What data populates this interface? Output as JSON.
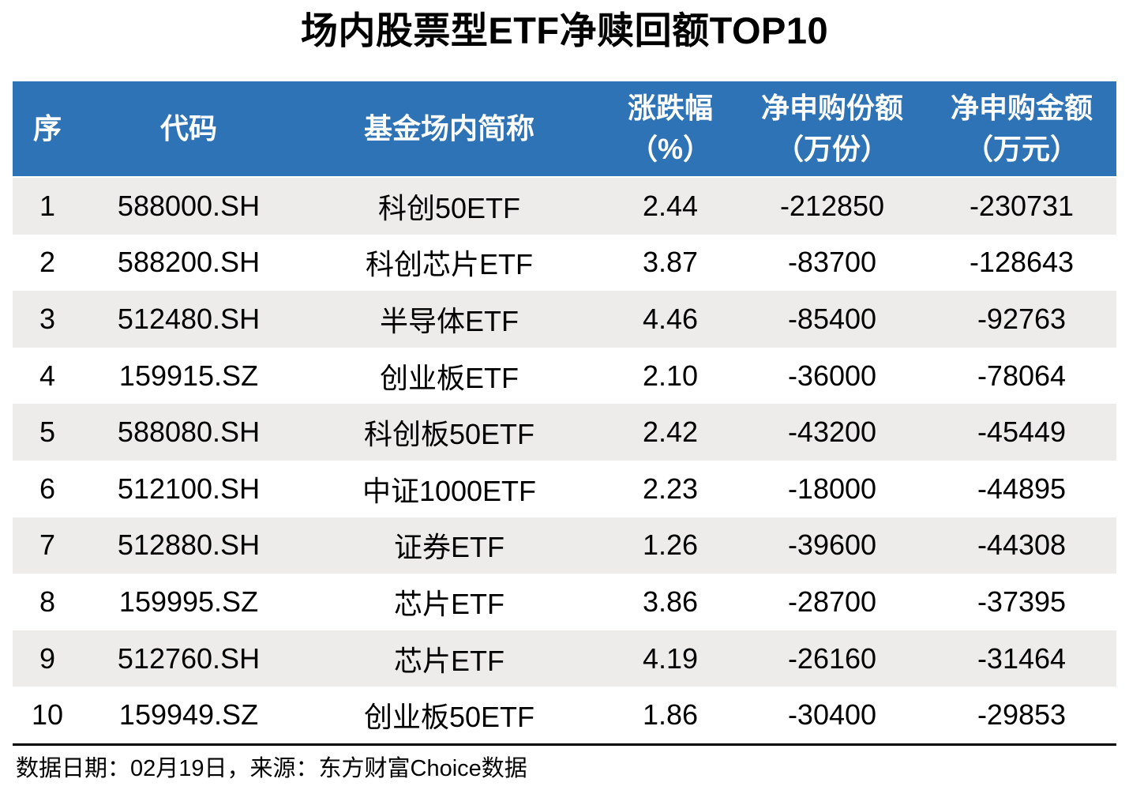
{
  "title": "场内股票型ETF净赎回额TOP10",
  "colors": {
    "header_bg": "#2E73B5",
    "stripe_bg": "#EDECEA",
    "header_fg": "#FFFFFF"
  },
  "footer": {
    "text": "数据日期：02月19日，来源：东方财富Choice数据"
  },
  "chart_data": {
    "type": "table",
    "title": "场内股票型ETF净赎回额TOP10",
    "columns": [
      {
        "label": "序",
        "sub": ""
      },
      {
        "label": "代码",
        "sub": ""
      },
      {
        "label": "基金场内简称",
        "sub": ""
      },
      {
        "label": "涨跌幅",
        "sub": "（%）"
      },
      {
        "label": "净申购份额",
        "sub": "（万份）"
      },
      {
        "label": "净申购金额",
        "sub": "（万元）"
      }
    ],
    "rows": [
      {
        "rank": "1",
        "code": "588000.SH",
        "name": "科创50ETF",
        "change": "2.44",
        "net_shares": "-212850",
        "net_amount": "-230731"
      },
      {
        "rank": "2",
        "code": "588200.SH",
        "name": "科创芯片ETF",
        "change": "3.87",
        "net_shares": "-83700",
        "net_amount": "-128643"
      },
      {
        "rank": "3",
        "code": "512480.SH",
        "name": "半导体ETF",
        "change": "4.46",
        "net_shares": "-85400",
        "net_amount": "-92763"
      },
      {
        "rank": "4",
        "code": "159915.SZ",
        "name": "创业板ETF",
        "change": "2.10",
        "net_shares": "-36000",
        "net_amount": "-78064"
      },
      {
        "rank": "5",
        "code": "588080.SH",
        "name": "科创板50ETF",
        "change": "2.42",
        "net_shares": "-43200",
        "net_amount": "-45449"
      },
      {
        "rank": "6",
        "code": "512100.SH",
        "name": "中证1000ETF",
        "change": "2.23",
        "net_shares": "-18000",
        "net_amount": "-44895"
      },
      {
        "rank": "7",
        "code": "512880.SH",
        "name": "证券ETF",
        "change": "1.26",
        "net_shares": "-39600",
        "net_amount": "-44308"
      },
      {
        "rank": "8",
        "code": "159995.SZ",
        "name": "芯片ETF",
        "change": "3.86",
        "net_shares": "-28700",
        "net_amount": "-37395"
      },
      {
        "rank": "9",
        "code": "512760.SH",
        "name": "芯片ETF",
        "change": "4.19",
        "net_shares": "-26160",
        "net_amount": "-31464"
      },
      {
        "rank": "10",
        "code": "159949.SZ",
        "name": "创业板50ETF",
        "change": "1.86",
        "net_shares": "-30400",
        "net_amount": "-29853"
      }
    ]
  }
}
